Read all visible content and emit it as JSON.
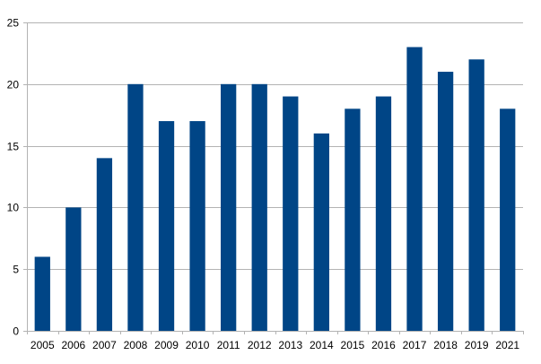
{
  "chart_data": {
    "type": "bar",
    "categories": [
      "2005",
      "2006",
      "2007",
      "2008",
      "2009",
      "2010",
      "2011",
      "2012",
      "2013",
      "2014",
      "2015",
      "2016",
      "2017",
      "2018",
      "2019",
      "2021"
    ],
    "values": [
      6,
      10,
      14,
      20,
      17,
      17,
      20,
      20,
      19,
      16,
      18,
      19,
      23,
      21,
      22,
      18
    ],
    "title": "",
    "xlabel": "",
    "ylabel": "",
    "ylim": [
      0,
      25
    ],
    "yticks": [
      0,
      5,
      10,
      15,
      20,
      25
    ],
    "grid": true,
    "legend": "none",
    "bar_color": "#004586"
  }
}
